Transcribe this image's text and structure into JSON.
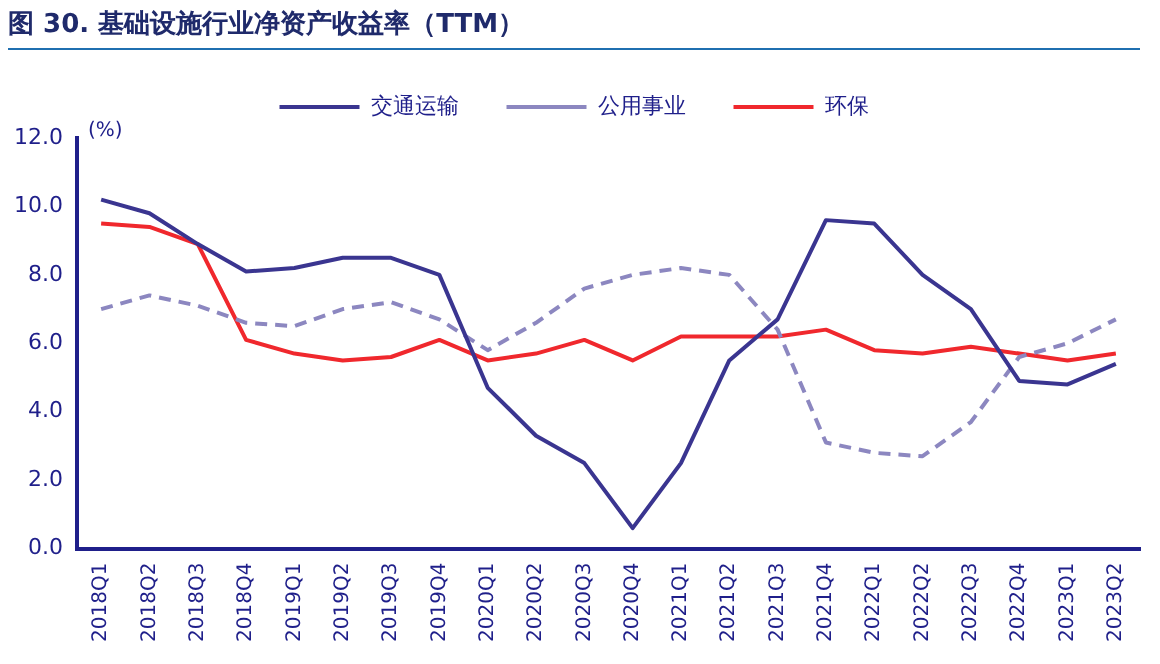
{
  "chart_data": {
    "type": "line",
    "title": "图 30. 基础设施行业净资产收益率（TTM）",
    "ylabel": "(%)",
    "categories": [
      "2018Q1",
      "2018Q2",
      "2018Q3",
      "2018Q4",
      "2019Q1",
      "2019Q2",
      "2019Q3",
      "2019Q4",
      "2020Q1",
      "2020Q2",
      "2020Q3",
      "2020Q4",
      "2021Q1",
      "2021Q2",
      "2021Q3",
      "2021Q4",
      "2022Q1",
      "2022Q2",
      "2022Q3",
      "2022Q4",
      "2023Q1",
      "2023Q2"
    ],
    "series": [
      {
        "name": "交通运输",
        "color": "#3a3590",
        "line_style": "solid",
        "values": [
          10.2,
          9.8,
          8.9,
          8.1,
          8.2,
          8.5,
          8.5,
          8.0,
          4.7,
          3.3,
          2.5,
          0.6,
          2.5,
          5.5,
          6.7,
          9.6,
          9.5,
          8.0,
          7.0,
          4.9,
          4.8,
          5.4
        ]
      },
      {
        "name": "公用事业",
        "color": "#8c87c0",
        "line_style": "dashed",
        "values": [
          7.0,
          7.4,
          7.1,
          6.6,
          6.5,
          7.0,
          7.2,
          6.7,
          5.8,
          6.6,
          7.6,
          8.0,
          8.2,
          8.0,
          6.4,
          3.1,
          2.8,
          2.7,
          3.7,
          5.6,
          6.0,
          6.7
        ]
      },
      {
        "name": "环保",
        "color": "#f0282d",
        "line_style": "solid",
        "values": [
          9.5,
          9.4,
          8.9,
          6.1,
          5.7,
          5.5,
          5.6,
          6.1,
          5.5,
          5.7,
          6.1,
          5.5,
          6.2,
          6.2,
          6.2,
          6.4,
          5.8,
          5.7,
          5.9,
          5.7,
          5.5,
          5.7
        ]
      }
    ],
    "ylim": [
      0,
      12
    ],
    "yticks": [
      {
        "value": 0,
        "label": "0.0"
      },
      {
        "value": 2,
        "label": "2.0"
      },
      {
        "value": 4,
        "label": "4.0"
      },
      {
        "value": 6,
        "label": "6.0"
      },
      {
        "value": 8,
        "label": "8.0"
      },
      {
        "value": 10,
        "label": "10.0"
      },
      {
        "value": 12,
        "label": "12.0"
      }
    ],
    "grid": false,
    "legend": "top",
    "marker": "none"
  }
}
